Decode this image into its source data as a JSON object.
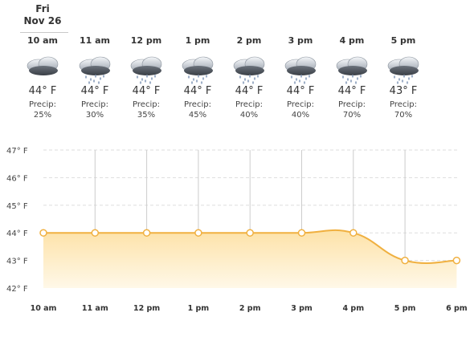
{
  "day": {
    "weekday": "Fri",
    "date": "Nov 26"
  },
  "precip_label": "Precip:",
  "hours": [
    {
      "time": "10 am",
      "temp": "44° F",
      "precip": "25%",
      "icon": "cloudy-icon"
    },
    {
      "time": "11 am",
      "temp": "44° F",
      "precip": "30%",
      "icon": "rain-cloud-icon"
    },
    {
      "time": "12 pm",
      "temp": "44° F",
      "precip": "35%",
      "icon": "rain-cloud-icon"
    },
    {
      "time": "1 pm",
      "temp": "44° F",
      "precip": "45%",
      "icon": "rain-cloud-icon"
    },
    {
      "time": "2 pm",
      "temp": "44° F",
      "precip": "40%",
      "icon": "rain-cloud-icon"
    },
    {
      "time": "3 pm",
      "temp": "44° F",
      "precip": "40%",
      "icon": "rain-cloud-icon"
    },
    {
      "time": "4 pm",
      "temp": "44° F",
      "precip": "70%",
      "icon": "rain-cloud-icon"
    },
    {
      "time": "5 pm",
      "temp": "43° F",
      "precip": "70%",
      "icon": "rain-cloud-icon"
    }
  ],
  "colors": {
    "line": "#f0b040",
    "fill_top": "#fde2a8",
    "fill_bottom": "#fff8e8",
    "grid": "#cccccc"
  },
  "chart_data": {
    "type": "area",
    "categories": [
      "10 am",
      "11 am",
      "12 pm",
      "1 pm",
      "2 pm",
      "3 pm",
      "4 pm",
      "5 pm",
      "6 pm"
    ],
    "values": [
      44,
      44,
      44,
      44,
      44,
      44,
      44,
      43,
      43
    ],
    "ylim": [
      42,
      47
    ],
    "yticks": [
      "42° F",
      "43° F",
      "44° F",
      "45° F",
      "46° F",
      "47° F"
    ],
    "grid": true
  }
}
